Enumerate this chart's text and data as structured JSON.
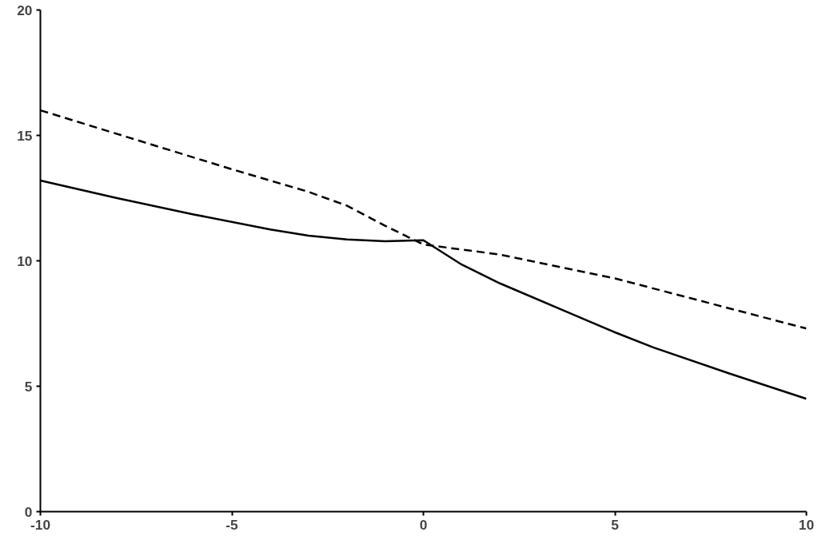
{
  "chart_data": {
    "type": "line",
    "xlim": [
      -10,
      10
    ],
    "ylim": [
      0,
      20
    ],
    "xticks": [
      -10,
      -5,
      0,
      5,
      10
    ],
    "yticks": [
      0,
      5,
      10,
      15,
      20
    ],
    "grid": false,
    "marker": "none",
    "series": [
      {
        "color": "#000000",
        "line_style": "solid",
        "x": [
          -10,
          -8,
          -6,
          -4,
          -3,
          -2,
          -1,
          0,
          1,
          2,
          4,
          5,
          6,
          8,
          10
        ],
        "values": [
          13.2,
          12.5,
          11.85,
          11.25,
          11.0,
          10.85,
          10.78,
          10.82,
          9.85,
          9.1,
          7.8,
          7.15,
          6.55,
          5.5,
          4.5
        ]
      },
      {
        "color": "#000000",
        "line_style": "dashed",
        "x": [
          -10,
          -5,
          -3,
          -2,
          -1,
          0,
          2,
          5,
          10
        ],
        "values": [
          16.0,
          13.65,
          12.75,
          12.2,
          11.4,
          10.65,
          10.25,
          9.3,
          7.3
        ]
      }
    ]
  }
}
